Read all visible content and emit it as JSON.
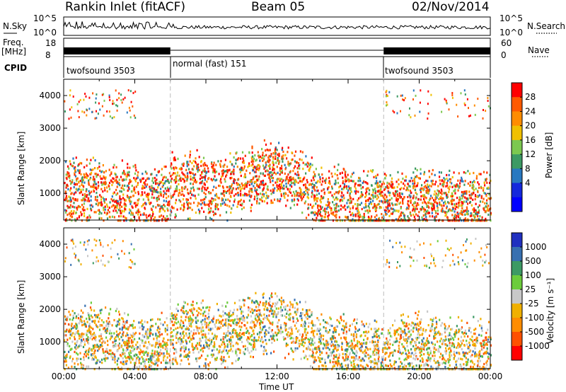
{
  "header": {
    "station": "Rankin Inlet (fitACF)",
    "beam": "Beam 05",
    "date": "02/Nov/2014"
  },
  "top_panels": {
    "nsky_label": "N.Sky",
    "nsearch_label": "N.Search",
    "freq_label": "Freq.",
    "freq_unit": "[MHz]",
    "nave_label": "Nave",
    "cpid_label": "CPID",
    "noise_ticks": [
      "10^5",
      "10^0"
    ],
    "freq_ticks": [
      "18",
      "8"
    ],
    "nave_ticks": [
      "60",
      "0"
    ],
    "cpid_segments": [
      {
        "label": "twofsound 3503",
        "start_h": 0,
        "end_h": 6
      },
      {
        "label": "normal (fast) 151",
        "start_h": 6,
        "end_h": 18
      },
      {
        "label": "twofsound 3503",
        "start_h": 18,
        "end_h": 24
      }
    ]
  },
  "chart_data": [
    {
      "type": "heatmap",
      "name": "power",
      "ylabel": "Slant Range [km]",
      "xlim": [
        0,
        24
      ],
      "ylim": [
        180,
        4500
      ],
      "yticks": [
        "1000",
        "2000",
        "3000",
        "4000"
      ],
      "colorbar_label": "Power [dB]",
      "colorbar_ticks": [
        "28",
        "24",
        "20",
        "16",
        "12",
        "8",
        "4"
      ],
      "colorbar_colors": [
        "#ff0000",
        "#ff5a00",
        "#ff8c00",
        "#f0c000",
        "#7cc850",
        "#3c9a64",
        "#2878c0",
        "#1428dc",
        "#0000ff"
      ]
    },
    {
      "type": "heatmap",
      "name": "velocity",
      "ylabel": "Slant Range [km]",
      "xlabel": "Time UT",
      "xlim": [
        0,
        24
      ],
      "ylim": [
        180,
        4500
      ],
      "yticks": [
        "1000",
        "2000",
        "3000",
        "4000"
      ],
      "xticks": [
        "00:00",
        "04:00",
        "08:00",
        "12:00",
        "16:00",
        "20:00",
        "00:00"
      ],
      "colorbar_label": "Velocity [m s⁻¹]",
      "colorbar_ticks": [
        "1000",
        "500",
        "100",
        "25",
        "-25",
        "-100",
        "-500",
        "-1000"
      ],
      "colorbar_colors": [
        "#2030c0",
        "#3870b0",
        "#3c9a64",
        "#6ccc3c",
        "#c8c8c8",
        "#f0b000",
        "#ff8c00",
        "#ff5000",
        "#ff0000"
      ]
    }
  ]
}
